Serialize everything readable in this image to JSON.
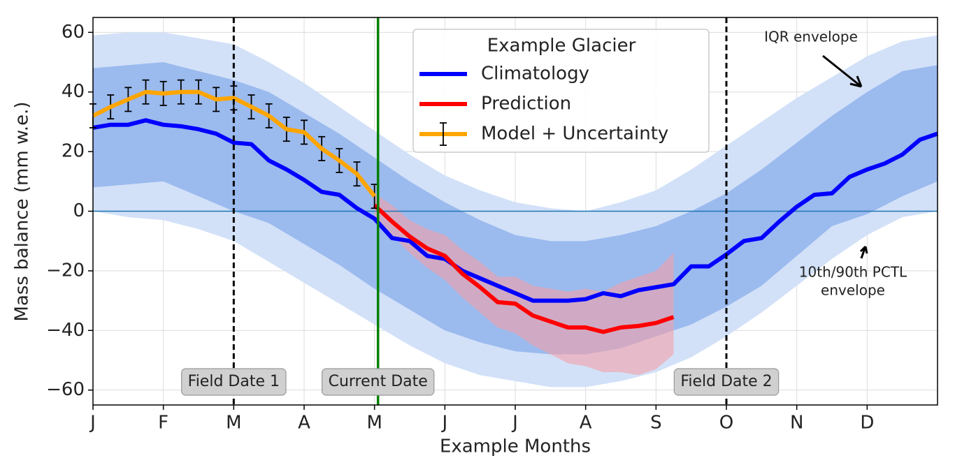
{
  "chart_data": {
    "type": "line",
    "x_label": "Example Months",
    "y_label": "Mass balance (mm w.e.)",
    "legend_title": "Example Glacier",
    "xlim": [
      0,
      12
    ],
    "ylim": [
      -65,
      65
    ],
    "xticks": [
      {
        "value": 0,
        "label": "J"
      },
      {
        "value": 1,
        "label": "F"
      },
      {
        "value": 2,
        "label": "M"
      },
      {
        "value": 3,
        "label": "A"
      },
      {
        "value": 4,
        "label": "M"
      },
      {
        "value": 5,
        "label": "J"
      },
      {
        "value": 6,
        "label": "J"
      },
      {
        "value": 7,
        "label": "A"
      },
      {
        "value": 8,
        "label": "S"
      },
      {
        "value": 9,
        "label": "O"
      },
      {
        "value": 10,
        "label": "N"
      },
      {
        "value": 11,
        "label": "D"
      }
    ],
    "yticks": [
      {
        "value": -60,
        "label": "−60"
      },
      {
        "value": -40,
        "label": "−40"
      },
      {
        "value": -20,
        "label": "−20"
      },
      0,
      20,
      40,
      60
    ],
    "grid": true,
    "reference_line": {
      "y": 0,
      "color": "#1f77b4"
    },
    "bands": [
      {
        "color": "#d2e1f8",
        "x": [
          0,
          0.5,
          1,
          1.5,
          2,
          2.5,
          3,
          3.5,
          4,
          4.5,
          5,
          5.5,
          6,
          6.5,
          7,
          7.5,
          8,
          8.5,
          9,
          9.5,
          10,
          10.5,
          11,
          11.5,
          12
        ],
        "upper": [
          59,
          60,
          60,
          58,
          56,
          50,
          43,
          35,
          27,
          19,
          12,
          7,
          3,
          1,
          0,
          3,
          7,
          14,
          22,
          30,
          38,
          45,
          52,
          57,
          59
        ],
        "lower": [
          0,
          -2,
          -3,
          -6,
          -10,
          -17,
          -24,
          -31,
          -38,
          -45,
          -51,
          -55,
          -57,
          -59,
          -59,
          -57,
          -54,
          -49,
          -42,
          -34,
          -25,
          -16,
          -8,
          -2,
          0
        ]
      },
      {
        "color": "#9bbaee",
        "x": [
          0,
          0.5,
          1,
          1.5,
          2,
          2.5,
          3,
          3.5,
          4,
          4.5,
          5,
          5.5,
          6,
          6.5,
          7,
          7.5,
          8,
          8.5,
          9,
          9.5,
          10,
          10.5,
          11,
          11.5,
          12
        ],
        "upper": [
          48,
          49,
          50,
          47,
          44,
          40,
          33,
          26,
          18,
          10,
          3,
          -3,
          -8,
          -10,
          -10,
          -8,
          -5,
          0,
          6,
          14,
          23,
          32,
          40,
          47,
          49
        ],
        "lower": [
          8,
          9,
          10,
          5,
          0,
          -4,
          -11,
          -18,
          -26,
          -33,
          -40,
          -44,
          -47,
          -48,
          -48,
          -46,
          -42,
          -38,
          -32,
          -25,
          -15,
          -5,
          -1,
          5,
          10
        ]
      },
      {
        "color": "#f4a0a8",
        "x": [
          4,
          4.25,
          4.5,
          4.75,
          5,
          5.25,
          5.5,
          5.75,
          6,
          6.25,
          6.5,
          6.75,
          7,
          7.25,
          7.5,
          7.75,
          8,
          8.25
        ],
        "upper": [
          6,
          2,
          -3,
          -6,
          -8,
          -13,
          -17,
          -22,
          -22,
          -25,
          -26,
          -27,
          -26,
          -27,
          -24,
          -22,
          -20,
          -14
        ],
        "lower": [
          -2,
          -8,
          -14,
          -19,
          -23,
          -29,
          -34,
          -39,
          -41,
          -45,
          -48,
          -51,
          -52,
          -54,
          -54,
          -55,
          -53,
          -48
        ]
      }
    ],
    "series": [
      {
        "name": "Climatology",
        "color": "#0000ff",
        "x": [
          0,
          0.25,
          0.5,
          0.75,
          1,
          1.25,
          1.5,
          1.75,
          2,
          2.25,
          2.5,
          2.75,
          3,
          3.25,
          3.5,
          3.75,
          4,
          4.25,
          4.5,
          4.75,
          5,
          5.25,
          5.5,
          5.75,
          6,
          6.25,
          6.5,
          6.75,
          7,
          7.25,
          7.5,
          7.75,
          8,
          8.25,
          8.5,
          8.75,
          9,
          9.25,
          9.5,
          9.75,
          10,
          10.25,
          10.5,
          10.75,
          11,
          11.25,
          11.5,
          11.75,
          12
        ],
        "values": [
          28,
          29,
          29,
          30.5,
          29,
          28.5,
          27.5,
          26,
          23,
          22.5,
          17,
          14,
          10.5,
          6.5,
          5.5,
          1,
          -2.5,
          -9,
          -10,
          -15,
          -16,
          -20,
          -22.5,
          -25,
          -27.5,
          -30,
          -30,
          -30,
          -29.5,
          -27.5,
          -28.5,
          -26.5,
          -25.5,
          -24.5,
          -18.5,
          -18.5,
          -14.5,
          -10,
          -9,
          -3.5,
          1.5,
          5.5,
          6,
          11.5,
          14,
          16,
          19,
          24,
          26
        ]
      },
      {
        "name": "Prediction",
        "color": "#ff0000",
        "x": [
          4,
          4.25,
          4.5,
          4.75,
          5,
          5.25,
          5.5,
          5.75,
          6,
          6.25,
          6.5,
          6.75,
          7,
          7.25,
          7.5,
          7.75,
          8,
          8.25
        ],
        "values": [
          2,
          -3.5,
          -8.5,
          -12.5,
          -15,
          -21,
          -25.5,
          -30.5,
          -31,
          -35,
          -37,
          -39,
          -39,
          -40.5,
          -39,
          -38.5,
          -37.5,
          -35.5
        ]
      },
      {
        "name": "Model + Uncertainty",
        "color": "#ffa500",
        "x": [
          0,
          0.25,
          0.5,
          0.75,
          1,
          1.25,
          1.5,
          1.75,
          2,
          2.25,
          2.5,
          2.75,
          3,
          3.25,
          3.5,
          3.75,
          4
        ],
        "values": [
          32,
          35,
          37.5,
          40,
          39.5,
          40,
          40,
          37.5,
          38,
          35,
          32,
          27.5,
          26.5,
          21,
          17,
          12.5,
          5
        ],
        "errors": [
          4,
          4,
          4,
          4,
          4,
          4,
          4,
          4,
          4,
          4,
          4,
          4,
          4,
          4,
          4,
          4,
          4
        ]
      }
    ],
    "markers": [
      {
        "x": 2,
        "label": "Field Date 1",
        "color": "#000000",
        "dashed": true
      },
      {
        "x": 4.05,
        "label": "Current Date",
        "color": "#008000",
        "dashed": false
      },
      {
        "x": 9,
        "label": "Field Date 2",
        "color": "#000000",
        "dashed": true
      }
    ],
    "annotations": [
      [
        "IQR envelope"
      ],
      [
        "10th/90th PCTL",
        "envelope"
      ]
    ]
  }
}
